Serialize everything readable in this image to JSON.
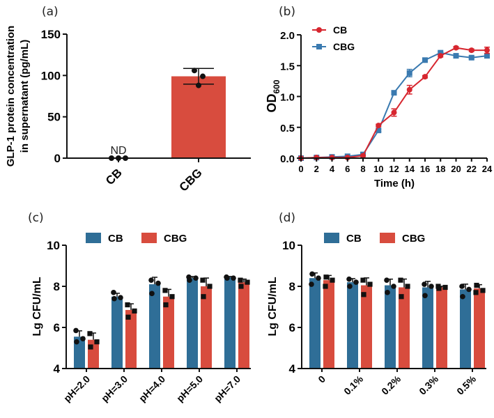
{
  "colors": {
    "cb_bar": "#2f6e97",
    "cbg_bar": "#d84c3e",
    "cb_line": "#d7262f",
    "cbg_line": "#3a7ab0",
    "axis": "#111111"
  },
  "chart_data": [
    {
      "panel": "(a)",
      "type": "bar",
      "categories": [
        "CB",
        "CBG"
      ],
      "values": [
        0,
        99
      ],
      "replicates": [
        [
          0,
          0,
          0
        ],
        [
          106,
          99,
          88
        ]
      ],
      "error": [
        0,
        9.5
      ],
      "annotation": "ND",
      "ylabel_line1": "GLP-1 protein concentration",
      "ylabel_line2": "in supernatant (pg/mL)",
      "xlabel": "",
      "ylim": [
        0,
        150
      ],
      "yticks": [
        "0",
        "50",
        "100",
        "150"
      ],
      "grid": false
    },
    {
      "panel": "(b)",
      "type": "line",
      "x": [
        0,
        2,
        4,
        6,
        8,
        10,
        12,
        14,
        16,
        18,
        20,
        22,
        24
      ],
      "series": [
        {
          "name": "CB",
          "marker": "circle",
          "values": [
            0.0,
            0.01,
            0.01,
            0.01,
            0.04,
            0.53,
            0.74,
            1.11,
            1.32,
            1.66,
            1.79,
            1.75,
            1.75
          ],
          "error": [
            0,
            0,
            0,
            0,
            0.01,
            0.02,
            0.06,
            0.07,
            0.02,
            0.02,
            0.02,
            0.02,
            0.05
          ]
        },
        {
          "name": "CBG",
          "marker": "square",
          "values": [
            0.0,
            0.01,
            0.02,
            0.03,
            0.06,
            0.45,
            1.06,
            1.38,
            1.59,
            1.71,
            1.66,
            1.63,
            1.66
          ],
          "error": [
            0,
            0,
            0,
            0.01,
            0.01,
            0.02,
            0.02,
            0.06,
            0.02,
            0.02,
            0.02,
            0.02,
            0.02
          ]
        }
      ],
      "xlabel": "Time (h)",
      "ylabel": "OD",
      "ylabel_sub": "600",
      "xlim": [
        0,
        24
      ],
      "ylim": [
        0,
        2.0
      ],
      "xticks": [
        "0",
        "2",
        "4",
        "6",
        "8",
        "10",
        "12",
        "14",
        "16",
        "18",
        "20",
        "22",
        "24"
      ],
      "yticks": [
        "0.0",
        "0.5",
        "1.0",
        "1.5",
        "2.0"
      ],
      "legend": "top-left",
      "grid": false
    },
    {
      "panel": "(c)",
      "type": "bar",
      "categories": [
        "pH=2.0",
        "pH=3.0",
        "pH=4.0",
        "pH=5.0",
        "pH=7.0"
      ],
      "series": [
        {
          "name": "CB",
          "values": [
            5.55,
            7.5,
            8.1,
            8.4,
            8.45
          ],
          "replicates": [
            [
              5.85,
              5.3,
              5.45
            ],
            [
              7.7,
              7.4,
              7.45
            ],
            [
              8.3,
              7.65,
              8.15
            ],
            [
              8.45,
              8.3,
              8.4
            ],
            [
              8.45,
              8.4,
              8.4
            ]
          ]
        },
        {
          "name": "CBG",
          "values": [
            5.4,
            6.85,
            7.5,
            8.0,
            8.2
          ],
          "replicates": [
            [
              5.7,
              5.05,
              5.3
            ],
            [
              7.1,
              6.5,
              6.8
            ],
            [
              7.8,
              7.1,
              7.5
            ],
            [
              8.3,
              7.5,
              8.0
            ],
            [
              8.3,
              8.0,
              8.2
            ]
          ]
        }
      ],
      "ylabel": "Lg CFU/mL",
      "ylim": [
        4,
        10
      ],
      "yticks": [
        "4",
        "6",
        "8",
        "10"
      ],
      "legend": "top",
      "grid": false
    },
    {
      "panel": "(d)",
      "type": "bar",
      "categories": [
        "0",
        "0.1%",
        "0.2%",
        "0.3%",
        "0.5%"
      ],
      "series": [
        {
          "name": "CB",
          "values": [
            8.4,
            8.2,
            8.05,
            7.95,
            7.85
          ],
          "replicates": [
            [
              8.1,
              8.6,
              8.4
            ],
            [
              8.35,
              8.0,
              8.2
            ],
            [
              8.3,
              7.7,
              8.0
            ],
            [
              8.1,
              7.55,
              8.0
            ],
            [
              8.0,
              7.5,
              7.85
            ]
          ]
        },
        {
          "name": "CBG",
          "values": [
            8.3,
            8.05,
            7.95,
            7.95,
            7.9
          ],
          "replicates": [
            [
              8.0,
              8.45,
              8.3
            ],
            [
              8.3,
              7.6,
              8.1
            ],
            [
              8.3,
              7.5,
              8.0
            ],
            [
              8.0,
              7.9,
              7.95
            ],
            [
              7.7,
              8.05,
              7.8
            ]
          ]
        }
      ],
      "ylabel": "Lg CFU/mL",
      "ylim": [
        4,
        10
      ],
      "yticks": [
        "4",
        "6",
        "8",
        "10"
      ],
      "legend": "top",
      "grid": false
    }
  ]
}
